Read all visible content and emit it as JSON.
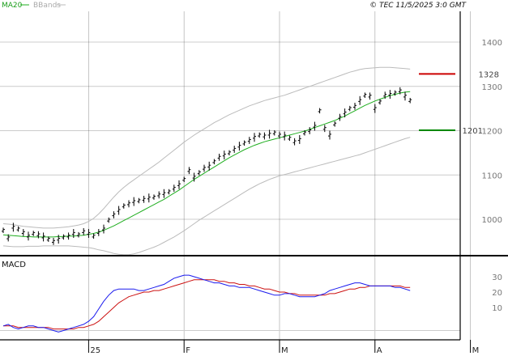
{
  "header": {
    "legend_ma": "MA20",
    "legend_bb": "BBands",
    "copyright": "© TEC 11/5/2025 3:0 GMT"
  },
  "colors": {
    "ma20": "#1fae1f",
    "bbands": "#bbbbbb",
    "resistance": "#cc0000",
    "support": "#008800",
    "macd": "#1a1aee",
    "signal": "#cc1111",
    "grid": "#cccccc",
    "price_bar": "#000000"
  },
  "chart_data": [
    {
      "type": "line",
      "subtype": "ohlc-price",
      "title": "",
      "ylim": [
        900,
        1450
      ],
      "y_ticks": [
        "1400",
        "1300",
        "1200",
        "1100",
        "1000"
      ],
      "x_labels": [
        "25",
        "F",
        "M",
        "A",
        "M"
      ],
      "x_label_days": [
        17,
        36,
        55,
        74,
        93
      ],
      "levels": [
        {
          "name": "resistance",
          "value": 1328,
          "label": "1328"
        },
        {
          "name": "support",
          "value": 1201,
          "label": "1201"
        }
      ],
      "series": [
        {
          "name": "Price",
          "values": [
            975,
            958,
            982,
            978,
            970,
            962,
            968,
            965,
            960,
            955,
            950,
            955,
            960,
            962,
            968,
            965,
            972,
            968,
            962,
            970,
            978,
            998,
            1010,
            1020,
            1030,
            1035,
            1040,
            1042,
            1045,
            1048,
            1050,
            1055,
            1058,
            1062,
            1070,
            1078,
            1090,
            1110,
            1095,
            1105,
            1115,
            1120,
            1130,
            1140,
            1145,
            1150,
            1158,
            1165,
            1172,
            1178,
            1185,
            1190,
            1188,
            1192,
            1195,
            1190,
            1188,
            1183,
            1175,
            1180,
            1195,
            1200,
            1210,
            1245,
            1205,
            1190,
            1215,
            1230,
            1240,
            1250,
            1255,
            1268,
            1280,
            1278,
            1250,
            1265,
            1280,
            1282,
            1285,
            1290,
            1278,
            1268
          ]
        },
        {
          "name": "MA20",
          "values": [
            965,
            964,
            963,
            962,
            961,
            961,
            960,
            960,
            960,
            960,
            960,
            961,
            961,
            962,
            962,
            963,
            964,
            966,
            968,
            971,
            975,
            980,
            985,
            991,
            997,
            1003,
            1009,
            1015,
            1021,
            1027,
            1033,
            1039,
            1045,
            1052,
            1059,
            1066,
            1074,
            1082,
            1090,
            1097,
            1104,
            1111,
            1118,
            1125,
            1132,
            1139,
            1145,
            1151,
            1157,
            1162,
            1167,
            1171,
            1175,
            1178,
            1181,
            1184,
            1187,
            1190,
            1193,
            1196,
            1199,
            1203,
            1207,
            1211,
            1215,
            1219,
            1223,
            1228,
            1233,
            1239,
            1245,
            1251,
            1257,
            1262,
            1267,
            1271,
            1275,
            1279,
            1282,
            1285,
            1287,
            1288
          ]
        },
        {
          "name": "BB upper",
          "values": [
            990,
            989,
            988,
            986,
            984,
            983,
            982,
            981,
            980,
            980,
            980,
            981,
            982,
            983,
            985,
            987,
            990,
            995,
            1002,
            1012,
            1024,
            1037,
            1050,
            1062,
            1072,
            1081,
            1089,
            1097,
            1105,
            1113,
            1121,
            1129,
            1138,
            1147,
            1156,
            1165,
            1174,
            1182,
            1190,
            1197,
            1204,
            1211,
            1218,
            1224,
            1230,
            1236,
            1241,
            1246,
            1251,
            1256,
            1260,
            1264,
            1268,
            1271,
            1274,
            1277,
            1280,
            1284,
            1288,
            1292,
            1296,
            1300,
            1304,
            1308,
            1312,
            1316,
            1320,
            1324,
            1328,
            1332,
            1335,
            1338,
            1340,
            1341,
            1342,
            1343,
            1343,
            1343,
            1342,
            1341,
            1340,
            1339
          ]
        },
        {
          "name": "BB lower",
          "values": [
            940,
            939,
            938,
            938,
            938,
            939,
            939,
            939,
            940,
            940,
            940,
            940,
            940,
            940,
            939,
            938,
            937,
            936,
            934,
            931,
            929,
            926,
            923,
            921,
            920,
            920,
            922,
            925,
            929,
            933,
            937,
            942,
            948,
            954,
            960,
            967,
            974,
            982,
            990,
            998,
            1005,
            1012,
            1019,
            1026,
            1033,
            1040,
            1047,
            1054,
            1061,
            1068,
            1074,
            1080,
            1085,
            1090,
            1094,
            1098,
            1101,
            1104,
            1107,
            1110,
            1113,
            1116,
            1119,
            1122,
            1125,
            1128,
            1131,
            1134,
            1137,
            1140,
            1143,
            1146,
            1150,
            1154,
            1158,
            1162,
            1166,
            1170,
            1174,
            1178,
            1182,
            1185
          ]
        }
      ]
    },
    {
      "type": "line",
      "title": "MACD",
      "ylim": [
        -10,
        40
      ],
      "y_ticks": [
        "30",
        "20",
        "10"
      ],
      "series": [
        {
          "name": "MACD",
          "values": [
            -2,
            -1,
            -3,
            -4,
            -3,
            -2,
            -2,
            -3,
            -3,
            -4,
            -5,
            -6,
            -5,
            -4,
            -3,
            -2,
            -1,
            1,
            4,
            9,
            14,
            18,
            21,
            22,
            22,
            22,
            22,
            21,
            21,
            22,
            23,
            24,
            25,
            27,
            29,
            30,
            31,
            31,
            30,
            29,
            28,
            27,
            26,
            26,
            25,
            24,
            24,
            23,
            23,
            23,
            22,
            21,
            20,
            19,
            18,
            18,
            19,
            19,
            18,
            17,
            17,
            17,
            17,
            18,
            19,
            21,
            22,
            23,
            24,
            25,
            26,
            26,
            25,
            24,
            24,
            24,
            24,
            24,
            23,
            23,
            22,
            21
          ]
        },
        {
          "name": "Signal",
          "values": [
            -2,
            -2,
            -2,
            -3,
            -3,
            -3,
            -3,
            -3,
            -3,
            -3,
            -4,
            -4,
            -4,
            -4,
            -4,
            -3,
            -3,
            -2,
            -1,
            1,
            4,
            7,
            10,
            13,
            15,
            17,
            18,
            19,
            20,
            20,
            21,
            21,
            22,
            23,
            24,
            25,
            26,
            27,
            28,
            28,
            28,
            28,
            28,
            27,
            27,
            26,
            26,
            25,
            25,
            24,
            24,
            23,
            22,
            22,
            21,
            20,
            20,
            19,
            19,
            18,
            18,
            18,
            18,
            18,
            18,
            19,
            19,
            20,
            21,
            22,
            22,
            23,
            23,
            24,
            24,
            24,
            24,
            24,
            24,
            24,
            23,
            23
          ]
        }
      ]
    }
  ]
}
